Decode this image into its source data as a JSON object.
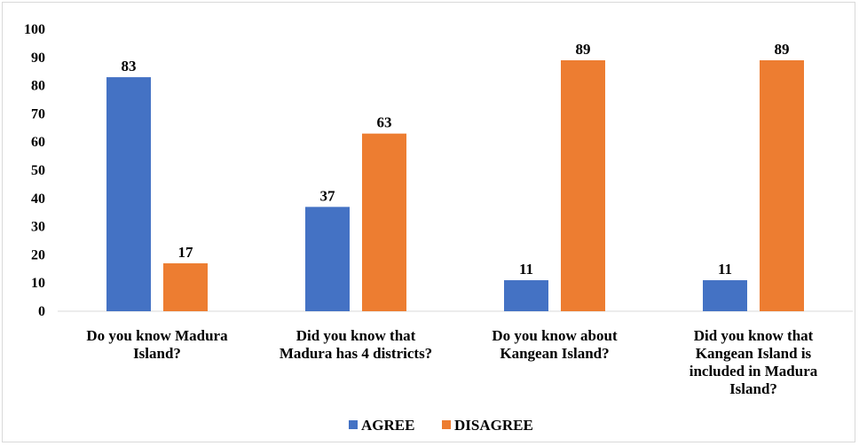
{
  "chart_data": {
    "type": "bar",
    "title": "",
    "xlabel": "",
    "ylabel": "",
    "ylim": [
      0,
      100
    ],
    "yticks": [
      0,
      10,
      20,
      30,
      40,
      50,
      60,
      70,
      80,
      90,
      100
    ],
    "categories": [
      [
        "Do you know Madura",
        "Island?"
      ],
      [
        "Did you know that",
        "Madura has 4 districts?"
      ],
      [
        "Do you know about",
        "Kangean Island?"
      ],
      [
        "Did you know that",
        "Kangean Island is",
        "included in Madura",
        "Island?"
      ]
    ],
    "series": [
      {
        "name": "AGREE",
        "color": "#4472C4",
        "values": [
          83,
          37,
          11,
          11
        ]
      },
      {
        "name": "DISAGREE",
        "color": "#ED7D31",
        "values": [
          17,
          63,
          89,
          89
        ]
      }
    ],
    "grid": false,
    "data_labels": true,
    "legend_position": "bottom"
  }
}
